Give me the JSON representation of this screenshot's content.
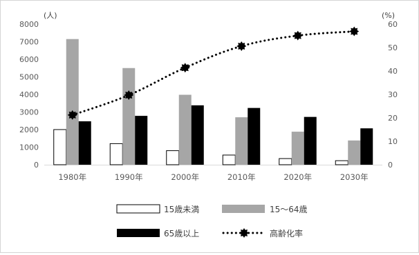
{
  "chart_data": {
    "type": "bar",
    "categories": [
      "1980年",
      "1990年",
      "2000年",
      "2010年",
      "2020年",
      "2030年"
    ],
    "left_axis": {
      "unit_label": "(人)",
      "ylim": [
        0,
        8000
      ],
      "ticks": [
        0,
        1000,
        2000,
        3000,
        4000,
        5000,
        6000,
        7000,
        8000
      ]
    },
    "right_axis": {
      "unit_label": "(%)",
      "ylim": [
        0,
        60
      ],
      "ticks": [
        0,
        10,
        20,
        30,
        40,
        50,
        60
      ]
    },
    "series": [
      {
        "name": "15歳未満",
        "kind": "bar",
        "axis": "left",
        "color": "#ffffff",
        "stroke": "#000000",
        "values": [
          2000,
          1200,
          800,
          550,
          350,
          230
        ]
      },
      {
        "name": "15～64歳",
        "kind": "bar",
        "axis": "left",
        "color": "#a6a6a6",
        "stroke": "none",
        "values": [
          7150,
          5500,
          3980,
          2700,
          1880,
          1380
        ]
      },
      {
        "name": "65歳以上",
        "kind": "bar",
        "axis": "left",
        "color": "#000000",
        "stroke": "none",
        "values": [
          2470,
          2780,
          3380,
          3230,
          2720,
          2070
        ]
      },
      {
        "name": "高齢化率",
        "kind": "line",
        "axis": "right",
        "color": "#000000",
        "style": "dotted",
        "marker": "spiked-circle",
        "values": [
          21.2,
          29.7,
          41.4,
          50.6,
          55.1,
          56.9
        ]
      }
    ],
    "grid": false,
    "legend_position": "bottom"
  }
}
